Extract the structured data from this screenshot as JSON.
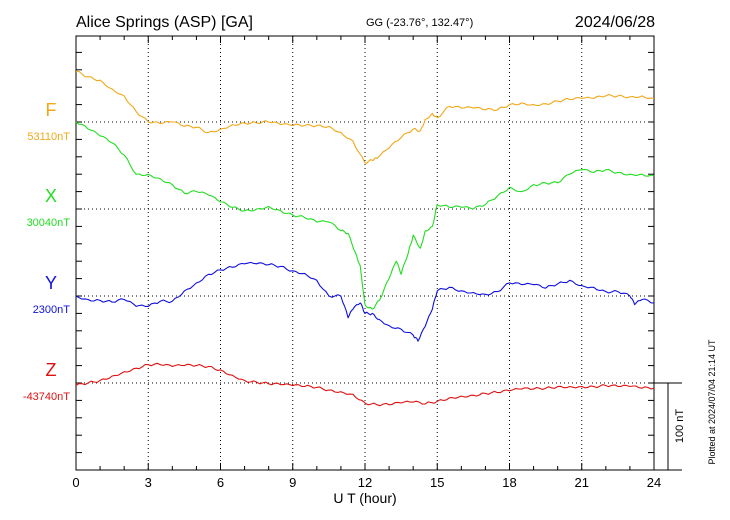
{
  "header": {
    "station": "Alice Springs (ASP)  [GA]",
    "coords": "GG (-23.76°, 132.47°)",
    "date": "2024/06/28"
  },
  "footer": {
    "plotted": "Plotted at 2024/07/04 21:14 UT",
    "scale_label": "100 nT"
  },
  "chart_data": {
    "type": "line",
    "title": "Alice Springs (ASP)  [GA]",
    "xlabel": "U T (hour)",
    "ylabel": "",
    "xlim": [
      0,
      24
    ],
    "xticks": [
      0,
      3,
      6,
      9,
      12,
      15,
      18,
      21,
      24
    ],
    "scale_nT": 100,
    "grid": true,
    "series": [
      {
        "name": "F",
        "baseline_label": "53110nT",
        "color": "#f0a818",
        "x": [
          0,
          0.5,
          1,
          1.5,
          2,
          2.5,
          3,
          3.5,
          4,
          4.5,
          5,
          5.5,
          6,
          6.5,
          7,
          7.5,
          8,
          8.5,
          9,
          9.5,
          10,
          10.5,
          11,
          11.5,
          12,
          12.3,
          12.5,
          13,
          13.5,
          14,
          14.3,
          14.5,
          14.8,
          15,
          15.5,
          16,
          16.5,
          17,
          17.5,
          18,
          18.5,
          19,
          19.5,
          20,
          20.5,
          21,
          21.5,
          22,
          22.5,
          23,
          23.5,
          24
        ],
        "values": [
          58,
          52,
          48,
          38,
          30,
          12,
          0,
          -2,
          0,
          -5,
          -6,
          -12,
          -8,
          -3,
          -1,
          -1,
          0,
          -3,
          -4,
          -4,
          -4,
          -5,
          -12,
          -22,
          -47,
          -44,
          -42,
          -30,
          -18,
          -8,
          -10,
          3,
          10,
          5,
          18,
          16,
          16,
          14,
          14,
          20,
          22,
          20,
          21,
          24,
          26,
          27,
          27,
          30,
          30,
          29,
          30,
          27
        ]
      },
      {
        "name": "X",
        "baseline_label": "30040nT",
        "color": "#22dd22",
        "x": [
          0,
          0.5,
          1,
          1.5,
          2,
          2.5,
          3,
          3.5,
          4,
          4.5,
          5,
          5.5,
          6,
          6.5,
          7,
          7.5,
          8,
          8.5,
          9,
          9.5,
          10,
          10.5,
          11,
          11.3,
          11.6,
          11.8,
          12,
          12.3,
          12.6,
          13,
          13.3,
          13.5,
          13.8,
          14,
          14.3,
          14.5,
          14.8,
          15,
          15.5,
          16,
          16.5,
          17,
          17.5,
          18,
          18.5,
          19,
          19.5,
          20,
          20.5,
          21,
          21.5,
          22,
          22.5,
          23,
          23.5,
          24
        ],
        "values": [
          100,
          92,
          84,
          76,
          62,
          40,
          40,
          35,
          28,
          18,
          20,
          16,
          8,
          2,
          -2,
          0,
          3,
          -2,
          -7,
          -10,
          -15,
          -15,
          -25,
          -28,
          -50,
          -65,
          -110,
          -115,
          -105,
          -80,
          -60,
          -75,
          -50,
          -30,
          -45,
          -25,
          -20,
          5,
          2,
          2,
          0,
          5,
          15,
          25,
          20,
          28,
          30,
          30,
          40,
          45,
          42,
          45,
          42,
          40,
          40,
          38
        ]
      },
      {
        "name": "Y",
        "baseline_label": "2300nT",
        "color": "#1010dd",
        "x": [
          0,
          0.5,
          1,
          1.5,
          2,
          2.5,
          3,
          3.5,
          4,
          4.5,
          5,
          5.5,
          6,
          6.5,
          7,
          7.5,
          8,
          8.5,
          9,
          9.5,
          10,
          10.5,
          11,
          11.3,
          11.5,
          11.8,
          12,
          12.3,
          12.6,
          13,
          13.5,
          14,
          14.2,
          14.5,
          14.8,
          15,
          15.5,
          16,
          16.5,
          17,
          17.5,
          18,
          18.5,
          19,
          19.5,
          20,
          20.5,
          21,
          21.5,
          22,
          22.5,
          23,
          23.2,
          23.5,
          24
        ],
        "values": [
          0,
          -4,
          -5,
          -7,
          -4,
          -12,
          -12,
          -6,
          -6,
          6,
          15,
          25,
          30,
          33,
          37,
          37,
          36,
          34,
          29,
          26,
          18,
          0,
          0,
          -25,
          -15,
          -8,
          -20,
          -20,
          -27,
          -34,
          -38,
          -45,
          -52,
          -35,
          -15,
          6,
          10,
          6,
          4,
          2,
          5,
          15,
          13,
          13,
          9,
          14,
          18,
          12,
          10,
          5,
          5,
          0,
          -10,
          -4,
          -8
        ]
      },
      {
        "name": "Z",
        "baseline_label": "-43740nT",
        "color": "#dd1111",
        "x": [
          0,
          0.5,
          1,
          1.5,
          2,
          2.5,
          3,
          3.5,
          4,
          4.5,
          5,
          5.5,
          6,
          6.5,
          7,
          7.5,
          8,
          8.5,
          9,
          9.5,
          10,
          10.5,
          11,
          11.5,
          12,
          12.5,
          13,
          13.5,
          14,
          14.5,
          15,
          15.5,
          16,
          16.5,
          17,
          17.5,
          18,
          18.5,
          19,
          19.5,
          20,
          20.5,
          21,
          21.5,
          22,
          22.5,
          23,
          23.5,
          24
        ],
        "values": [
          -3,
          0,
          3,
          8,
          13,
          17,
          21,
          21,
          19,
          20,
          20,
          19,
          15,
          9,
          3,
          1,
          -1,
          -2,
          -3,
          -4,
          -5,
          -8,
          -10,
          -13,
          -23,
          -25,
          -25,
          -23,
          -22,
          -24,
          -21,
          -17,
          -15,
          -14,
          -12,
          -11,
          -9,
          -7,
          -7,
          -6,
          -4,
          -4,
          -4,
          -4,
          -3,
          -4,
          -4,
          -6,
          -6
        ]
      }
    ]
  }
}
